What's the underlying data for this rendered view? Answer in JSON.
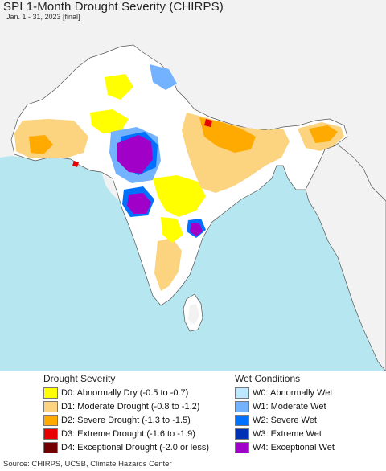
{
  "map": {
    "title": "SPI 1-Month Drought Severity (CHIRPS)",
    "subtitle": "Jan. 1 - 31, 2023 [final]",
    "region": "South Asia",
    "colors": {
      "ocean": "#b6e6f0",
      "land_background": "#ffffff",
      "outside_land": "#f2f2f2",
      "borders": "#555555"
    }
  },
  "legend": {
    "drought": {
      "heading": "Drought Severity",
      "items": [
        {
          "code": "D0",
          "label": "D0: Abnormally Dry (-0.5 to -0.7)",
          "color": "#ffff00"
        },
        {
          "code": "D1",
          "label": "D1: Moderate Drought (-0.8 to -1.2)",
          "color": "#fcd37f"
        },
        {
          "code": "D2",
          "label": "D2: Severe Drought (-1.3 to -1.5)",
          "color": "#ffaa00"
        },
        {
          "code": "D3",
          "label": "D3: Extreme Drought (-1.6 to -1.9)",
          "color": "#e60000"
        },
        {
          "code": "D4",
          "label": "D4: Exceptional Drought (-2.0 or less)",
          "color": "#730000"
        }
      ]
    },
    "wet": {
      "heading": "Wet Conditions",
      "items": [
        {
          "code": "W0",
          "label": "W0: Abnormally Wet",
          "color": "#bee8ff"
        },
        {
          "code": "W1",
          "label": "W1: Moderate Wet",
          "color": "#73b2ff"
        },
        {
          "code": "W2",
          "label": "W2: Severe Wet",
          "color": "#0070ff"
        },
        {
          "code": "W3",
          "label": "W3: Extreme Wet",
          "color": "#0030b4"
        },
        {
          "code": "W4",
          "label": "W4: Exceptional Wet",
          "color": "#a000c8"
        }
      ]
    }
  },
  "source": "Source: CHIRPS, UCSB, Climate Hazards Center"
}
